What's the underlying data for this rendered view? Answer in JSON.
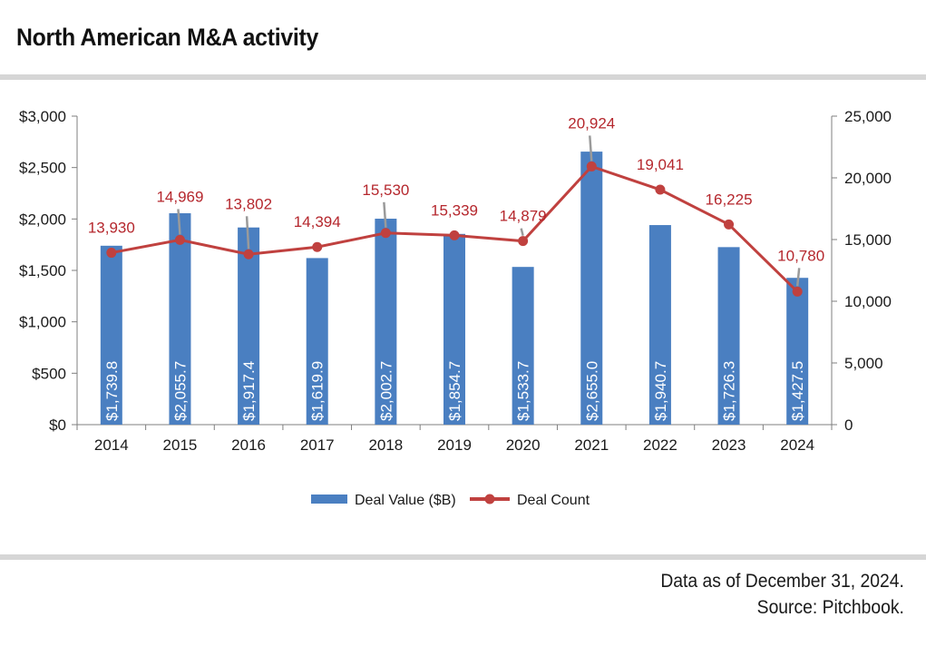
{
  "header": {
    "title": "North American M&A activity"
  },
  "footer": {
    "line1": "Data as of December 31, 2024.",
    "line2": "Source: Pitchbook."
  },
  "colors": {
    "bar": "#4a7fc1",
    "line": "#c0413f",
    "label_red": "#b5272d",
    "leader": "#9a9a9a"
  },
  "chart_data": {
    "type": "bar",
    "title": "North American M&A activity",
    "categories": [
      "2014",
      "2015",
      "2016",
      "2017",
      "2018",
      "2019",
      "2020",
      "2021",
      "2022",
      "2023",
      "2024"
    ],
    "series": [
      {
        "name": "Deal Value ($B)",
        "type": "bar",
        "axis": "left",
        "values": [
          1739.8,
          2055.7,
          1917.4,
          1619.9,
          2002.7,
          1854.7,
          1533.7,
          2655.0,
          1940.7,
          1726.3,
          1427.5
        ],
        "labels": [
          "$1,739.8",
          "$2,055.7",
          "$1,917.4",
          "$1,619.9",
          "$2,002.7",
          "$1,854.7",
          "$1,533.7",
          "$2,655.0",
          "$1,940.7",
          "$1,726.3",
          "$1,427.5"
        ]
      },
      {
        "name": "Deal Count",
        "type": "line",
        "axis": "right",
        "values": [
          13930,
          14969,
          13802,
          14394,
          15530,
          15339,
          14879,
          20924,
          19041,
          16225,
          10780
        ],
        "labels": [
          "13,930",
          "14,969",
          "13,802",
          "14,394",
          "15,530",
          "15,339",
          "14,879",
          "20,924",
          "19,041",
          "16,225",
          "10,780"
        ]
      }
    ],
    "left_axis": {
      "ylim": [
        0,
        3000
      ],
      "ticks": [
        0,
        500,
        1000,
        1500,
        2000,
        2500,
        3000
      ],
      "tick_labels": [
        "$0",
        "$500",
        "$1,000",
        "$1,500",
        "$2,000",
        "$2,500",
        "$3,000"
      ]
    },
    "right_axis": {
      "ylim": [
        0,
        25000
      ],
      "ticks": [
        0,
        5000,
        10000,
        15000,
        20000,
        25000
      ],
      "tick_labels": [
        "0",
        "5,000",
        "10,000",
        "15,000",
        "20,000",
        "25,000"
      ]
    },
    "xlabel": "",
    "ylabel": "",
    "y2label": "",
    "grid": false,
    "legend": {
      "position": "bottom",
      "entries": [
        "Deal Value ($B)",
        "Deal Count"
      ]
    }
  }
}
